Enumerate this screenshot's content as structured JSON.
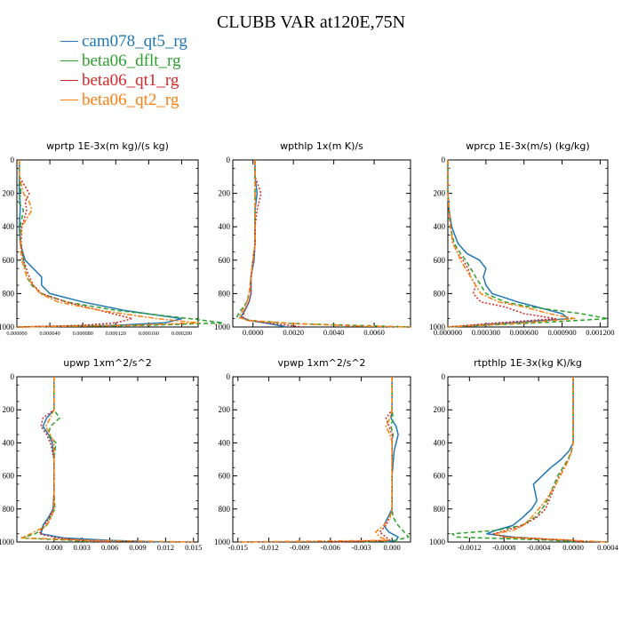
{
  "title": "CLUBB VAR at120E,75N",
  "legend": [
    {
      "label": "cam078_qt5_rg",
      "color": "#1f77b4"
    },
    {
      "label": "beta06_dflt_rg",
      "color": "#2ca02c"
    },
    {
      "label": "beta06_qt1_rg",
      "color": "#d62728"
    },
    {
      "label": "beta06_qt2_rg",
      "color": "#ff7f0e"
    }
  ],
  "chart_data": [
    {
      "type": "line",
      "title": "wprtp  1E-3x(m kg)/(s kg)",
      "xlim": [
        0,
        0.00022
      ],
      "ylim": [
        1000,
        0
      ],
      "x_ticks": [
        "0.000000",
        "0.000040",
        "0.000080",
        "0.000120",
        "0.000160",
        "0.000200"
      ],
      "y_ticks": [
        "0",
        "200",
        "400",
        "600",
        "800",
        "1000"
      ],
      "y": [
        0,
        100,
        200,
        250,
        300,
        400,
        500,
        600,
        700,
        750,
        800,
        850,
        900,
        950,
        975,
        990,
        1000
      ],
      "series": [
        {
          "color": "#1f77b4",
          "dash": "solid",
          "x": [
            3e-06,
            3e-06,
            3e-06,
            4e-06,
            4e-06,
            3e-06,
            4e-06,
            1e-05,
            3e-05,
            3e-05,
            4e-05,
            8e-05,
            0.00013,
            0.0002,
            0.00018,
            0.00012,
            0.0
          ]
        },
        {
          "color": "#2ca02c",
          "dash": "dash",
          "x": [
            3e-06,
            3e-06,
            5e-06,
            2e-06,
            8e-06,
            4e-06,
            5e-06,
            8e-06,
            1.2e-05,
            1.8e-05,
            3e-05,
            6e-05,
            0.00012,
            0.00021,
            0.00025,
            0.00016,
            0.0
          ]
        },
        {
          "color": "#d62728",
          "dash": "dot",
          "x": [
            3e-06,
            3e-06,
            1.5e-05,
            1e-05,
            1.2e-05,
            6e-06,
            5e-06,
            8e-06,
            1.5e-05,
            2e-05,
            3e-05,
            6e-05,
            0.0001,
            0.00014,
            0.00012,
            8e-05,
            0.0
          ]
        },
        {
          "color": "#ff7f0e",
          "dash": "dashdot",
          "x": [
            3e-06,
            3e-06,
            8e-06,
            1.5e-05,
            1.8e-05,
            6e-06,
            4e-06,
            6e-06,
            1.2e-05,
            2e-05,
            2.8e-05,
            5e-05,
            0.0001,
            0.00017,
            0.00022,
            0.00014,
            0.0
          ]
        }
      ]
    },
    {
      "type": "line",
      "title": "wpthlp  1x(m K)/s",
      "xlim": [
        -0.001,
        0.0078
      ],
      "ylim": [
        1000,
        0
      ],
      "x_ticks": [
        "0.0000",
        "0.0020",
        "0.0040",
        "0.0060"
      ],
      "y_ticks": [
        "0",
        "200",
        "400",
        "600",
        "800",
        "1000"
      ],
      "y": [
        0,
        100,
        200,
        300,
        400,
        500,
        600,
        700,
        800,
        850,
        900,
        940,
        960,
        980,
        995,
        1000
      ],
      "series": [
        {
          "color": "#1f77b4",
          "dash": "solid",
          "x": [
            0.0001,
            0.0001,
            0.0002,
            0.0001,
            0.0001,
            0.0001,
            5e-05,
            -0.0001,
            -0.0001,
            -0.0002,
            -0.0004,
            -0.0006,
            -0.0002,
            0.0008,
            0.0015,
            0.0016
          ]
        },
        {
          "color": "#2ca02c",
          "dash": "dash",
          "x": [
            0.0001,
            0.0001,
            0.0001,
            0.0001,
            0.0001,
            0.0001,
            0.0,
            -0.0001,
            -0.0002,
            -0.0003,
            -0.0006,
            -0.0008,
            -0.0002,
            0.002,
            0.0065,
            0.0078
          ]
        },
        {
          "color": "#d62728",
          "dash": "dot",
          "x": [
            0.0001,
            0.0001,
            0.0004,
            0.0002,
            0.0001,
            0.0001,
            0.0,
            -0.0001,
            -0.0001,
            -0.0002,
            -0.0004,
            -0.0005,
            -0.0003,
            0.001,
            0.0022,
            0.0024
          ]
        },
        {
          "color": "#ff7f0e",
          "dash": "dashdot",
          "x": [
            0.0001,
            0.0001,
            0.0001,
            0.0001,
            0.0001,
            0.0001,
            0.0,
            -0.0001,
            -0.0002,
            -0.0003,
            -0.0005,
            -0.0007,
            -0.0003,
            0.002,
            0.0055,
            0.0078
          ]
        }
      ]
    },
    {
      "type": "line",
      "title": "wprcp  1E-3x(m/s) (kg/kg)",
      "xlim": [
        0,
        0.00126
      ],
      "ylim": [
        1000,
        0
      ],
      "x_ticks": [
        "0.000000",
        "0.000300",
        "0.000600",
        "0.000900",
        "0.001200"
      ],
      "y_ticks": [
        "0",
        "200",
        "400",
        "600",
        "800",
        "1000"
      ],
      "y": [
        0,
        200,
        300,
        400,
        500,
        560,
        600,
        650,
        700,
        750,
        800,
        850,
        880,
        920,
        950,
        975,
        1000
      ],
      "series": [
        {
          "color": "#1f77b4",
          "dash": "solid",
          "x": [
            0.0,
            0.0,
            1e-05,
            3e-05,
            8e-05,
            0.00015,
            0.00025,
            0.0003,
            0.00028,
            0.0003,
            0.00035,
            0.00055,
            0.0007,
            0.0009,
            0.00095,
            0.0005,
            0.0
          ]
        },
        {
          "color": "#2ca02c",
          "dash": "dash",
          "x": [
            0.0,
            0.0,
            1e-05,
            2e-05,
            5e-05,
            0.0001,
            0.00014,
            0.00018,
            0.00022,
            0.00026,
            0.0003,
            0.00045,
            0.00065,
            0.00105,
            0.00126,
            0.0007,
            0.0
          ]
        },
        {
          "color": "#d62728",
          "dash": "dot",
          "x": [
            0.0,
            0.0,
            1e-05,
            2e-05,
            4e-05,
            8e-05,
            0.00012,
            0.00016,
            0.00018,
            0.00022,
            0.0002,
            0.00026,
            0.00045,
            0.0006,
            0.00085,
            0.0004,
            0.0
          ]
        },
        {
          "color": "#ff7f0e",
          "dash": "dashdot",
          "x": [
            0.0,
            0.0,
            1e-05,
            2e-05,
            4e-05,
            8e-05,
            0.0001,
            0.00014,
            0.00018,
            0.00022,
            0.00026,
            0.0004,
            0.0006,
            0.0008,
            0.001,
            0.0006,
            0.0
          ]
        }
      ]
    },
    {
      "type": "line",
      "title": "upwp  1xm^2/s^2",
      "xlim": [
        -0.004,
        0.0155
      ],
      "ylim": [
        1000,
        0
      ],
      "x_ticks": [
        "0.000",
        "0.003",
        "0.006",
        "0.009",
        "0.012",
        "0.015"
      ],
      "y_ticks": [
        "0",
        "200",
        "400",
        "600",
        "800",
        "1000"
      ],
      "y": [
        0,
        200,
        250,
        300,
        350,
        400,
        500,
        600,
        700,
        800,
        850,
        900,
        950,
        975,
        990,
        1000
      ],
      "series": [
        {
          "color": "#1f77b4",
          "dash": "solid",
          "x": [
            0.0,
            0.0,
            -0.0008,
            -0.0012,
            -0.0006,
            -0.0002,
            0.0,
            0.0,
            0.0,
            -0.0001,
            -0.0006,
            -0.0012,
            -0.0014,
            0.001,
            0.006,
            0.012
          ]
        },
        {
          "color": "#2ca02c",
          "dash": "dash",
          "x": [
            0.0,
            0.0,
            0.0006,
            -0.0004,
            -0.0006,
            0.0002,
            0.0,
            0.0,
            0.0,
            0.0001,
            -0.0004,
            -0.0008,
            -0.002,
            -0.0035,
            0.002,
            0.004
          ]
        },
        {
          "color": "#d62728",
          "dash": "dot",
          "x": [
            0.0,
            0.0,
            -0.0012,
            -0.0014,
            -0.0008,
            -0.0004,
            0.0,
            0.0,
            0.0,
            -0.0001,
            -0.0005,
            -0.001,
            -0.0016,
            0.0004,
            0.003,
            0.006
          ]
        },
        {
          "color": "#ff7f0e",
          "dash": "dashdot",
          "x": [
            0.0,
            0.0,
            -0.0004,
            -0.0009,
            -0.0004,
            0.0,
            0.0,
            0.0,
            0.0,
            0.0,
            -0.0003,
            -0.0008,
            -0.0025,
            -0.0035,
            0.004,
            0.015
          ]
        }
      ]
    },
    {
      "type": "line",
      "title": "vpwp  1xm^2/s^2",
      "xlim": [
        -0.0155,
        0.0018
      ],
      "ylim": [
        1000,
        0
      ],
      "x_ticks": [
        "-0.015",
        "-0.012",
        "-0.009",
        "-0.006",
        "-0.003",
        "0.000"
      ],
      "y_ticks": [
        "0",
        "200",
        "400",
        "600",
        "800",
        "1000"
      ],
      "y": [
        0,
        200,
        250,
        300,
        350,
        400,
        450,
        600,
        800,
        850,
        900,
        940,
        970,
        990,
        1000
      ],
      "series": [
        {
          "color": "#1f77b4",
          "dash": "solid",
          "x": [
            0.0,
            0.0,
            -0.0001,
            0.0004,
            0.0006,
            0.0004,
            0.0002,
            0.0,
            0.0,
            -0.0004,
            -0.0008,
            -0.0003,
            0.0006,
            0.0004,
            -0.0005
          ]
        },
        {
          "color": "#2ca02c",
          "dash": "dash",
          "x": [
            0.0,
            0.0,
            0.0001,
            -0.0001,
            0.0001,
            0.0,
            0.0,
            0.0,
            0.0,
            0.0001,
            0.0006,
            0.0012,
            0.0016,
            0.0004,
            -0.003
          ]
        },
        {
          "color": "#d62728",
          "dash": "dot",
          "x": [
            0.0,
            0.0,
            -0.0006,
            -0.0003,
            0.0,
            0.0,
            0.0,
            0.0,
            0.0,
            -0.0002,
            -0.0006,
            -0.0012,
            -0.0006,
            -0.0002,
            -0.006
          ]
        },
        {
          "color": "#ff7f0e",
          "dash": "dashdot",
          "x": [
            0.0,
            0.0,
            -0.0002,
            -0.0006,
            -0.0002,
            0.0,
            0.0,
            0.0,
            0.0,
            -0.0002,
            -0.0008,
            -0.0016,
            -0.0012,
            -0.0004,
            -0.015
          ]
        }
      ]
    },
    {
      "type": "line",
      "title": "rtpthlp  1E-3x(kg K)/kg",
      "xlim": [
        -0.00145,
        0.0004
      ],
      "ylim": [
        1000,
        0
      ],
      "x_ticks": [
        "-0.0012",
        "-0.0008",
        "-0.0004",
        "0.0000",
        "0.0004"
      ],
      "y_ticks": [
        "0",
        "200",
        "400",
        "600",
        "800",
        "1000"
      ],
      "y": [
        0,
        200,
        400,
        450,
        500,
        550,
        600,
        650,
        700,
        750,
        800,
        850,
        900,
        930,
        950,
        970,
        990,
        1000
      ],
      "series": [
        {
          "color": "#1f77b4",
          "dash": "solid",
          "x": [
            0.0,
            0.0,
            0.0,
            -5e-05,
            -0.00014,
            -0.00026,
            -0.00036,
            -0.00046,
            -0.00044,
            -0.00042,
            -0.00048,
            -0.00058,
            -0.0007,
            -0.0009,
            -0.001,
            -0.0007,
            -0.0001,
            0.0
          ]
        },
        {
          "color": "#2ca02c",
          "dash": "dash",
          "x": [
            0.0,
            0.0,
            0.0,
            -2e-05,
            -6e-05,
            -0.00012,
            -0.00018,
            -0.00022,
            -0.00026,
            -0.0003,
            -0.00036,
            -0.00044,
            -0.0006,
            -0.0009,
            -0.0014,
            -0.00135,
            -0.0002,
            0.0
          ]
        },
        {
          "color": "#d62728",
          "dash": "dot",
          "x": [
            0.0,
            0.0,
            0.0,
            -2e-05,
            -5e-05,
            -0.0001,
            -0.00016,
            -0.0002,
            -0.00024,
            -0.00028,
            -0.00032,
            -0.00042,
            -0.00058,
            -0.00078,
            -0.00092,
            -0.0008,
            0.0,
            0.0001
          ]
        },
        {
          "color": "#ff7f0e",
          "dash": "dashdot",
          "x": [
            0.0,
            0.0,
            0.0,
            -2e-05,
            -5e-05,
            -0.0001,
            -0.00015,
            -0.0002,
            -0.00026,
            -0.00032,
            -0.0004,
            -0.00048,
            -0.00058,
            -0.0007,
            -0.0009,
            -0.0008,
            0.0,
            0.0004
          ]
        }
      ]
    }
  ]
}
